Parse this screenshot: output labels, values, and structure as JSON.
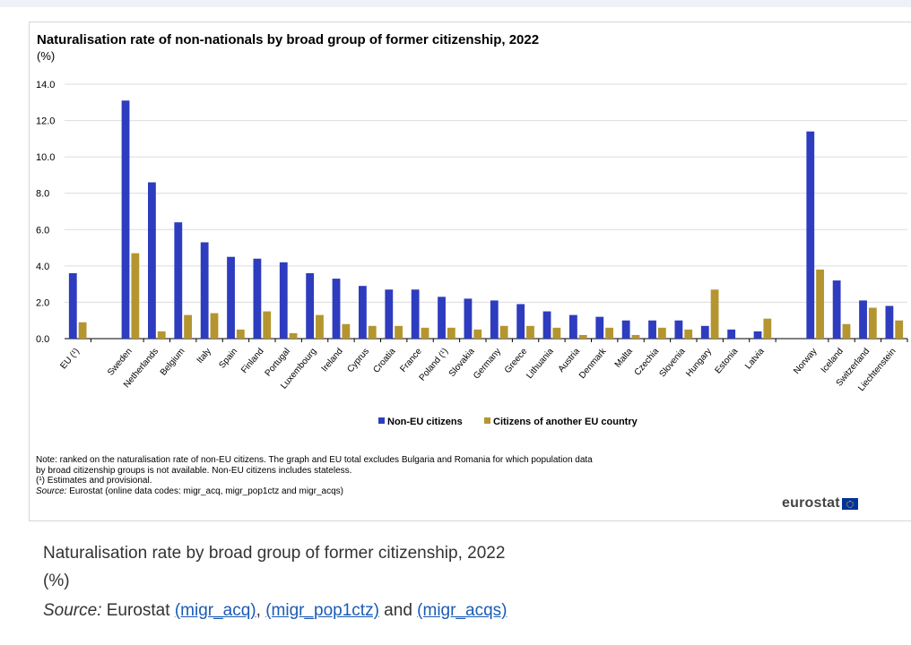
{
  "figure": {
    "title": "Naturalisation rate of non-nationals by broad group of former citizenship, 2022",
    "unit": "(%)",
    "note_line1": "Note: ranked on the naturalisation rate of non-EU citizens. The graph and EU total excludes Bulgaria and Romania for which population data",
    "note_line2": "by broad citizenship groups is not available. Non-EU citizens includes stateless.",
    "note_line3": "(¹) Estimates and provisional.",
    "source_label": "Source:",
    "source_text": "Eurostat (online data codes: migr_acq, migr_pop1ctz and migr_acqs)",
    "logo_text": "eurostat"
  },
  "caption": {
    "title": "Naturalisation rate by broad group of former citizenship, 2022",
    "unit": "(%)",
    "source_label": "Source:",
    "source_prefix": " Eurostat ",
    "link1": "(migr_acq)",
    "sep": ", ",
    "link2": "(migr_pop1ctz)",
    "and": " and ",
    "link3": "(migr_acqs)"
  },
  "chart_data": {
    "type": "bar",
    "title": "Naturalisation rate of non-nationals by broad group of former citizenship, 2022",
    "ylabel": "(%)",
    "ylim": [
      0,
      14
    ],
    "yticks": [
      "0.0",
      "2.0",
      "4.0",
      "6.0",
      "8.0",
      "10.0",
      "12.0",
      "14.0"
    ],
    "grid": true,
    "legend_position": "bottom-center",
    "categories": [
      "EU (¹)",
      "Sweden",
      "Netherlands",
      "Belgium",
      "Italy",
      "Spain",
      "Finland",
      "Portugal",
      "Luxembourg",
      "Ireland",
      "Cyprus",
      "Croatia",
      "France",
      "Poland (¹)",
      "Slovakia",
      "Germany",
      "Greece",
      "Lithuania",
      "Austria",
      "Denmark",
      "Malta",
      "Czechia",
      "Slovenia",
      "Hungary",
      "Estonia",
      "Latvia",
      "Norway",
      "Iceland",
      "Switzerland",
      "Liechtenstein"
    ],
    "groups": [
      1,
      25,
      4
    ],
    "series": [
      {
        "name": "Non-EU citizens",
        "color": "#2e3cbf",
        "values": [
          3.6,
          13.1,
          8.6,
          6.4,
          5.3,
          4.5,
          4.4,
          4.2,
          3.6,
          3.3,
          2.9,
          2.7,
          2.7,
          2.3,
          2.2,
          2.1,
          1.9,
          1.5,
          1.3,
          1.2,
          1.0,
          1.0,
          1.0,
          0.7,
          0.5,
          0.4,
          11.4,
          3.2,
          2.1,
          1.8
        ]
      },
      {
        "name": "Citizens of another EU country",
        "color": "#b5952f",
        "values": [
          0.9,
          4.7,
          0.4,
          1.3,
          1.4,
          0.5,
          1.5,
          0.3,
          1.3,
          0.8,
          0.7,
          0.7,
          0.6,
          0.6,
          0.5,
          0.7,
          0.7,
          0.6,
          0.2,
          0.6,
          0.2,
          0.6,
          0.5,
          2.7,
          0.0,
          1.1,
          3.8,
          0.8,
          1.7,
          1.0
        ]
      }
    ]
  }
}
